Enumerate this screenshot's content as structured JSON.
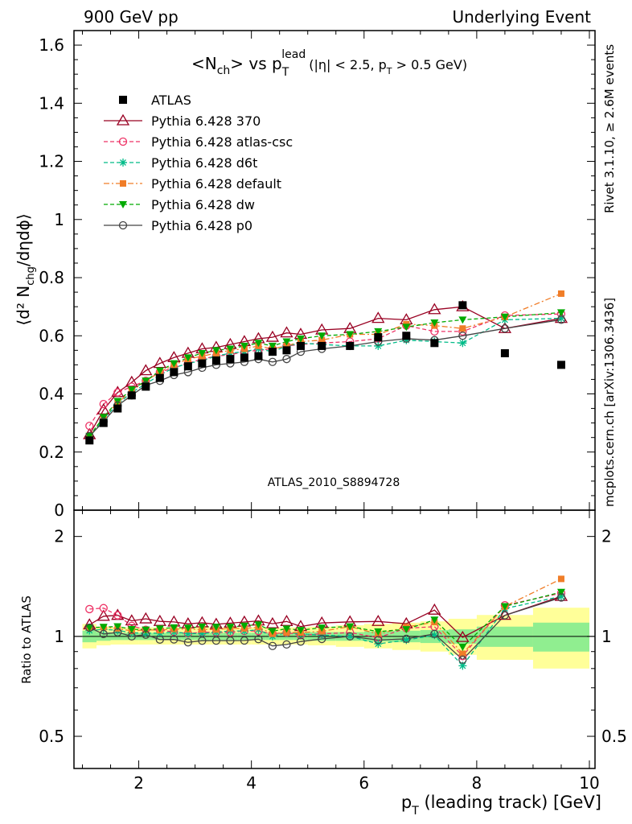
{
  "header": {
    "left": "900 GeV pp",
    "right": "Underlying Event"
  },
  "side_labels": {
    "rivet": "Rivet 3.1.10, ≥ 2.6M events",
    "mcplots": "mcplots.cern.ch [arXiv:1306.3436]"
  },
  "plot_title": {
    "main": "<N",
    "sub_ch": "ch",
    "vs": "> vs p",
    "sub_T": "T",
    "sup_lead": "lead",
    "cuts": "(|η| < 2.5, p",
    "cuts_T": "T",
    "cuts_end": " > 0.5 GeV)"
  },
  "watermark": "ATLAS_2010_S8894728",
  "axes": {
    "ylabel_main": "⟨d² N",
    "ylabel_sub": "chg",
    "ylabel_end": "/dηdϕ⟩",
    "ylabel_ratio": "Ratio to ATLAS",
    "xlabel_p": "p",
    "xlabel_sub": "T",
    "xlabel_rest": " (leading track) [GeV]",
    "main_yticks": [
      "0",
      "0.2",
      "0.4",
      "0.6",
      "0.8",
      "1",
      "1.2",
      "1.4",
      "1.6"
    ],
    "ratio_yticks": [
      "0.5",
      "1",
      "2"
    ],
    "xticks": [
      "2",
      "4",
      "6",
      "8",
      "10"
    ]
  },
  "colors": {
    "ATLAS": "#000000",
    "p370": "#990022",
    "atlascsc": "#ee3366",
    "d6t": "#00bb88",
    "default": "#f07d28",
    "dw": "#00aa00",
    "p0": "#444444",
    "band_inner": "#90ee90",
    "band_outer": "#ffff99"
  },
  "chart_data": {
    "type": "scatter",
    "xlim": [
      0.85,
      10.1
    ],
    "ylim": [
      0,
      1.65
    ],
    "ratio_ylim": [
      0.4,
      2.4
    ],
    "ratio_yscale": "log",
    "legend_position": "top-left",
    "x": [
      1.125,
      1.375,
      1.625,
      1.875,
      2.125,
      2.375,
      2.625,
      2.875,
      3.125,
      3.375,
      3.625,
      3.875,
      4.125,
      4.375,
      4.625,
      4.875,
      5.25,
      5.75,
      6.25,
      6.75,
      7.25,
      7.75,
      8.5,
      9.5
    ],
    "series": [
      {
        "name": "ATLAS",
        "key": "ATLAS",
        "marker": "square",
        "line": "none",
        "values": [
          0.24,
          0.3,
          0.35,
          0.395,
          0.425,
          0.455,
          0.475,
          0.495,
          0.505,
          0.515,
          0.52,
          0.525,
          0.53,
          0.545,
          0.55,
          0.565,
          0.565,
          0.565,
          0.595,
          0.6,
          0.575,
          0.705,
          0.54,
          0.5
        ]
      },
      {
        "name": "Pythia 6.428 370",
        "key": "p370",
        "marker": "triangle-open",
        "line": "solid",
        "values": [
          0.26,
          0.345,
          0.405,
          0.44,
          0.48,
          0.505,
          0.525,
          0.54,
          0.555,
          0.56,
          0.57,
          0.58,
          0.59,
          0.595,
          0.61,
          0.605,
          0.62,
          0.625,
          0.66,
          0.655,
          0.69,
          0.7,
          0.625,
          0.66
        ]
      },
      {
        "name": "Pythia 6.428 atlas-csc",
        "key": "atlascsc",
        "marker": "circle-open",
        "line": "dashed",
        "values": [
          0.29,
          0.365,
          0.405,
          0.425,
          0.445,
          0.475,
          0.49,
          0.505,
          0.52,
          0.53,
          0.535,
          0.545,
          0.55,
          0.555,
          0.565,
          0.57,
          0.575,
          0.58,
          0.59,
          0.635,
          0.615,
          0.615,
          0.67,
          0.675
        ]
      },
      {
        "name": "Pythia 6.428 d6t",
        "key": "d6t",
        "marker": "star",
        "line": "dashed",
        "values": [
          0.25,
          0.315,
          0.365,
          0.405,
          0.435,
          0.465,
          0.49,
          0.505,
          0.515,
          0.53,
          0.54,
          0.545,
          0.555,
          0.545,
          0.565,
          0.575,
          0.57,
          0.565,
          0.565,
          0.585,
          0.58,
          0.575,
          0.655,
          0.66
        ]
      },
      {
        "name": "Pythia 6.428 default",
        "key": "default",
        "marker": "square-small",
        "line": "dashdot",
        "values": [
          0.255,
          0.32,
          0.37,
          0.41,
          0.445,
          0.475,
          0.5,
          0.52,
          0.53,
          0.54,
          0.55,
          0.555,
          0.565,
          0.555,
          0.565,
          0.58,
          0.585,
          0.605,
          0.605,
          0.64,
          0.635,
          0.625,
          0.665,
          0.745
        ]
      },
      {
        "name": "Pythia 6.428 dw",
        "key": "dw",
        "marker": "triangle-down",
        "line": "dashed",
        "values": [
          0.255,
          0.32,
          0.375,
          0.415,
          0.445,
          0.48,
          0.505,
          0.525,
          0.54,
          0.55,
          0.555,
          0.565,
          0.575,
          0.565,
          0.58,
          0.59,
          0.6,
          0.605,
          0.615,
          0.63,
          0.645,
          0.655,
          0.665,
          0.68
        ]
      },
      {
        "name": "Pythia 6.428 p0",
        "key": "p0",
        "marker": "circle-open",
        "line": "solid",
        "values": [
          0.255,
          0.305,
          0.36,
          0.395,
          0.43,
          0.445,
          0.465,
          0.475,
          0.49,
          0.5,
          0.505,
          0.51,
          0.52,
          0.51,
          0.52,
          0.545,
          0.555,
          0.565,
          0.58,
          0.59,
          0.585,
          0.6,
          0.625,
          0.655
        ]
      }
    ],
    "band_edges": [
      1.0,
      1.25,
      1.5,
      1.75,
      2.0,
      2.25,
      2.5,
      2.75,
      3.0,
      3.25,
      3.5,
      3.75,
      4.0,
      4.25,
      4.5,
      4.75,
      5.0,
      5.5,
      6.0,
      6.5,
      7.0,
      7.5,
      8.0,
      9.0,
      10.0
    ],
    "band_inner": [
      [
        0.96,
        1.04
      ],
      [
        0.97,
        1.03
      ],
      [
        0.975,
        1.025
      ],
      [
        0.975,
        1.025
      ],
      [
        0.975,
        1.025
      ],
      [
        0.975,
        1.025
      ],
      [
        0.975,
        1.025
      ],
      [
        0.975,
        1.025
      ],
      [
        0.975,
        1.025
      ],
      [
        0.975,
        1.025
      ],
      [
        0.975,
        1.025
      ],
      [
        0.975,
        1.025
      ],
      [
        0.975,
        1.025
      ],
      [
        0.975,
        1.025
      ],
      [
        0.975,
        1.025
      ],
      [
        0.975,
        1.025
      ],
      [
        0.97,
        1.03
      ],
      [
        0.97,
        1.03
      ],
      [
        0.965,
        1.035
      ],
      [
        0.96,
        1.04
      ],
      [
        0.955,
        1.045
      ],
      [
        0.95,
        1.05
      ],
      [
        0.93,
        1.07
      ],
      [
        0.9,
        1.1
      ]
    ],
    "band_outer": [
      [
        0.92,
        1.09
      ],
      [
        0.94,
        1.07
      ],
      [
        0.945,
        1.065
      ],
      [
        0.945,
        1.065
      ],
      [
        0.945,
        1.065
      ],
      [
        0.945,
        1.065
      ],
      [
        0.945,
        1.065
      ],
      [
        0.945,
        1.065
      ],
      [
        0.945,
        1.065
      ],
      [
        0.945,
        1.065
      ],
      [
        0.945,
        1.065
      ],
      [
        0.945,
        1.065
      ],
      [
        0.945,
        1.065
      ],
      [
        0.945,
        1.065
      ],
      [
        0.945,
        1.065
      ],
      [
        0.945,
        1.065
      ],
      [
        0.94,
        1.07
      ],
      [
        0.93,
        1.08
      ],
      [
        0.92,
        1.09
      ],
      [
        0.91,
        1.1
      ],
      [
        0.9,
        1.11
      ],
      [
        0.88,
        1.13
      ],
      [
        0.85,
        1.16
      ],
      [
        0.8,
        1.22
      ]
    ]
  }
}
